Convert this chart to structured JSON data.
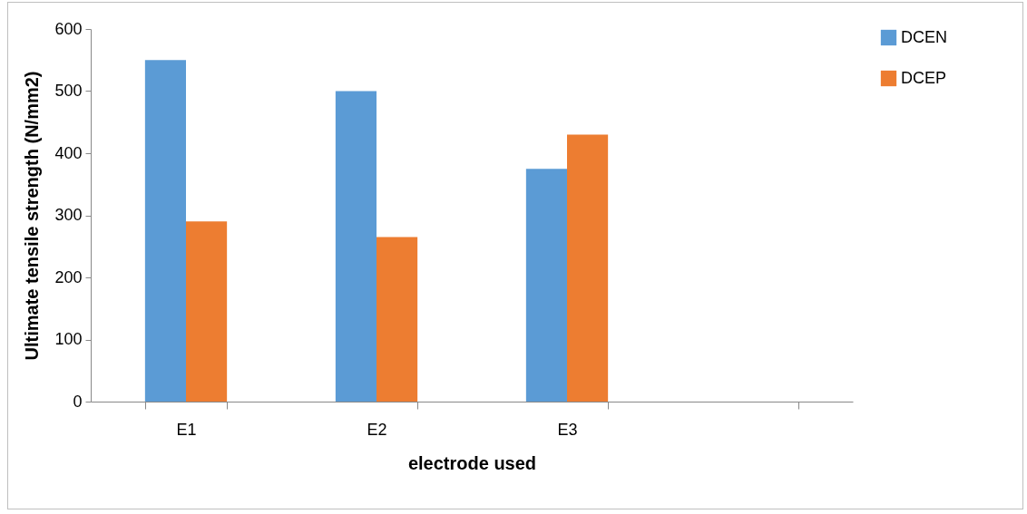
{
  "chart_data": {
    "type": "bar",
    "xlabel": "electrode used",
    "ylabel": "Ultimate tensile strength (N/mm2)",
    "categories": [
      "E1",
      "E2",
      "E3",
      null
    ],
    "series": [
      {
        "name": "DCEN",
        "color": "#5b9bd5",
        "values": [
          550,
          500,
          375,
          null
        ]
      },
      {
        "name": "DCEP",
        "color": "#ed7d31",
        "values": [
          290,
          265,
          430,
          null
        ]
      }
    ],
    "ylim": [
      0,
      600
    ],
    "yticks": [
      0,
      100,
      200,
      300,
      400,
      500,
      600
    ],
    "grid": false,
    "legend": "right"
  }
}
